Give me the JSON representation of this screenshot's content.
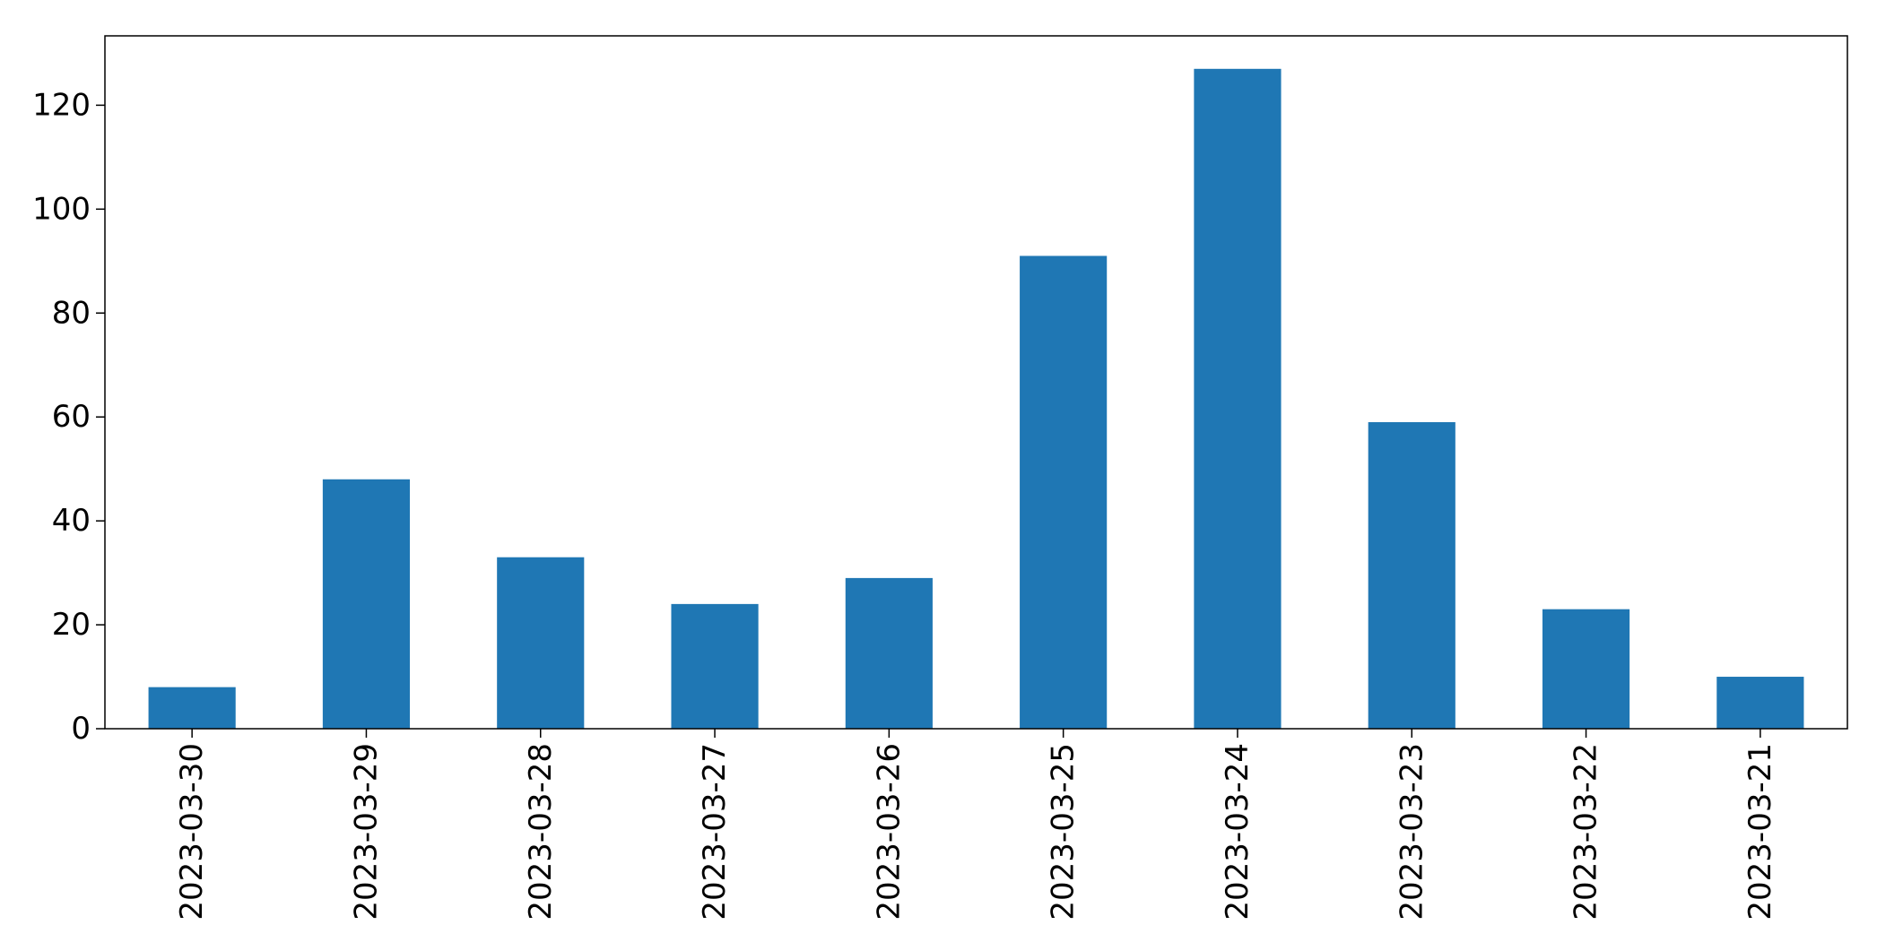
{
  "chart_data": {
    "type": "bar",
    "title": "",
    "xlabel": "",
    "ylabel": "",
    "categories": [
      "2023-03-30",
      "2023-03-29",
      "2023-03-28",
      "2023-03-27",
      "2023-03-26",
      "2023-03-25",
      "2023-03-24",
      "2023-03-23",
      "2023-03-22",
      "2023-03-21"
    ],
    "values": [
      8,
      48,
      33,
      24,
      29,
      91,
      127,
      59,
      23,
      10
    ],
    "ylim": [
      0,
      133.35
    ],
    "yticks": [
      0,
      20,
      40,
      60,
      80,
      100,
      120
    ],
    "grid": false,
    "legend": "none",
    "bar_color": "#1f77b4"
  }
}
